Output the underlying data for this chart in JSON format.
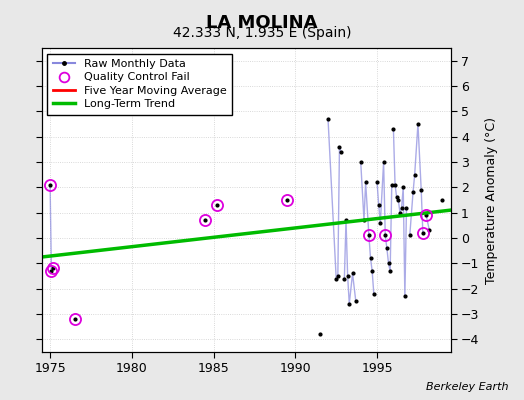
{
  "title": "LA MOLINA",
  "subtitle": "42.333 N, 1.935 E (Spain)",
  "ylabel_right": "Temperature Anomaly (°C)",
  "credit": "Berkeley Earth",
  "xlim": [
    1974.5,
    1999.5
  ],
  "ylim": [
    -4.5,
    7.5
  ],
  "yticks": [
    -4,
    -3,
    -2,
    -1,
    0,
    1,
    2,
    3,
    4,
    5,
    6,
    7
  ],
  "xticks": [
    1975,
    1980,
    1985,
    1990,
    1995
  ],
  "bg_color": "#e8e8e8",
  "plot_bg_color": "#ffffff",
  "monthly_data": [
    [
      1975.0,
      2.1
    ],
    [
      1975.08,
      -1.3
    ],
    [
      1975.17,
      -1.2
    ],
    [
      1976.5,
      -3.2
    ],
    [
      1984.5,
      0.7
    ],
    [
      1985.2,
      1.3
    ],
    [
      1989.5,
      1.5
    ],
    [
      1991.5,
      -3.8
    ],
    [
      1992.0,
      4.7
    ],
    [
      1992.5,
      -1.6
    ],
    [
      1992.6,
      -1.5
    ],
    [
      1992.7,
      3.6
    ],
    [
      1992.8,
      3.4
    ],
    [
      1993.0,
      -1.6
    ],
    [
      1993.1,
      0.7
    ],
    [
      1993.2,
      -1.5
    ],
    [
      1993.3,
      -2.6
    ],
    [
      1993.5,
      -1.4
    ],
    [
      1993.7,
      -2.5
    ],
    [
      1994.0,
      3.0
    ],
    [
      1994.2,
      0.7
    ],
    [
      1994.3,
      2.2
    ],
    [
      1994.5,
      0.1
    ],
    [
      1994.6,
      -0.8
    ],
    [
      1994.7,
      -1.3
    ],
    [
      1994.8,
      -2.2
    ],
    [
      1995.0,
      2.2
    ],
    [
      1995.1,
      1.3
    ],
    [
      1995.2,
      0.6
    ],
    [
      1995.4,
      3.0
    ],
    [
      1995.5,
      0.1
    ],
    [
      1995.6,
      -0.4
    ],
    [
      1995.7,
      -1.0
    ],
    [
      1995.8,
      -1.3
    ],
    [
      1995.9,
      2.1
    ],
    [
      1996.0,
      4.3
    ],
    [
      1996.1,
      2.1
    ],
    [
      1996.2,
      1.6
    ],
    [
      1996.3,
      1.5
    ],
    [
      1996.4,
      1.0
    ],
    [
      1996.5,
      1.2
    ],
    [
      1996.6,
      2.0
    ],
    [
      1996.7,
      -2.3
    ],
    [
      1996.8,
      1.2
    ],
    [
      1997.0,
      0.1
    ],
    [
      1997.2,
      1.8
    ],
    [
      1997.3,
      2.5
    ],
    [
      1997.5,
      4.5
    ],
    [
      1997.7,
      1.9
    ],
    [
      1997.8,
      0.2
    ],
    [
      1998.0,
      0.9
    ],
    [
      1998.2,
      0.3
    ],
    [
      1999.0,
      1.5
    ]
  ],
  "qc_fail": [
    [
      1975.0,
      2.1
    ],
    [
      1975.08,
      -1.3
    ],
    [
      1975.17,
      -1.2
    ],
    [
      1976.5,
      -3.2
    ],
    [
      1984.5,
      0.7
    ],
    [
      1985.2,
      1.3
    ],
    [
      1989.5,
      1.5
    ],
    [
      1994.5,
      0.1
    ],
    [
      1995.5,
      0.1
    ],
    [
      1997.8,
      0.2
    ],
    [
      1998.0,
      0.9
    ]
  ],
  "connected_groups": [
    [
      [
        1975.0,
        2.1
      ],
      [
        1975.08,
        -1.3
      ],
      [
        1975.17,
        -1.2
      ]
    ],
    [
      [
        1992.0,
        4.7
      ],
      [
        1992.5,
        -1.6
      ],
      [
        1992.6,
        -1.5
      ],
      [
        1992.7,
        3.6
      ],
      [
        1992.8,
        3.4
      ]
    ],
    [
      [
        1993.0,
        -1.6
      ],
      [
        1993.1,
        0.7
      ],
      [
        1993.2,
        -1.5
      ],
      [
        1993.3,
        -2.6
      ],
      [
        1993.5,
        -1.4
      ],
      [
        1993.7,
        -2.5
      ]
    ],
    [
      [
        1994.0,
        3.0
      ],
      [
        1994.2,
        0.7
      ],
      [
        1994.3,
        2.2
      ],
      [
        1994.5,
        0.1
      ],
      [
        1994.6,
        -0.8
      ],
      [
        1994.7,
        -1.3
      ],
      [
        1994.8,
        -2.2
      ]
    ],
    [
      [
        1995.0,
        2.2
      ],
      [
        1995.1,
        1.3
      ],
      [
        1995.2,
        0.6
      ],
      [
        1995.4,
        3.0
      ],
      [
        1995.5,
        0.1
      ],
      [
        1995.6,
        -0.4
      ],
      [
        1995.7,
        -1.0
      ],
      [
        1995.8,
        -1.3
      ],
      [
        1995.9,
        2.1
      ]
    ],
    [
      [
        1996.0,
        4.3
      ],
      [
        1996.1,
        2.1
      ],
      [
        1996.2,
        1.6
      ],
      [
        1996.3,
        1.5
      ],
      [
        1996.4,
        1.0
      ],
      [
        1996.5,
        1.2
      ],
      [
        1996.6,
        2.0
      ],
      [
        1996.7,
        -2.3
      ],
      [
        1996.8,
        1.2
      ]
    ],
    [
      [
        1997.0,
        0.1
      ],
      [
        1997.2,
        1.8
      ],
      [
        1997.3,
        2.5
      ],
      [
        1997.5,
        4.5
      ],
      [
        1997.7,
        1.9
      ],
      [
        1997.8,
        0.2
      ]
    ],
    [
      [
        1998.0,
        0.9
      ],
      [
        1998.2,
        0.3
      ]
    ]
  ],
  "trend_x": [
    1974.5,
    1999.5
  ],
  "trend_y": [
    -0.75,
    1.1
  ],
  "line_color": "#8888dd",
  "line_alpha": 0.7,
  "trend_color": "#00bb00",
  "qc_color": "#dd00dd",
  "dot_color": "black",
  "title_fontsize": 13,
  "subtitle_fontsize": 10,
  "legend_fontsize": 8,
  "tick_fontsize": 9,
  "ylabel_fontsize": 9,
  "credit_fontsize": 8
}
